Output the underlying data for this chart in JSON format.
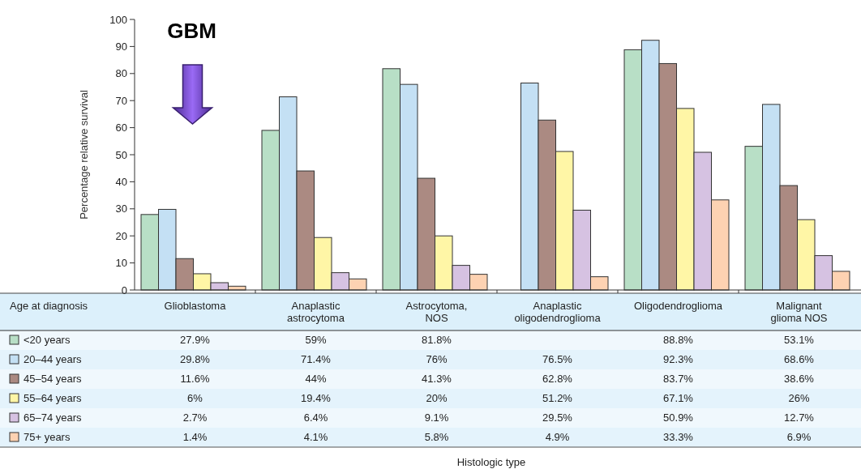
{
  "chart_data": {
    "type": "bar",
    "ylabel": "Percentage relative survival",
    "legend_title": "Age at diagnosis",
    "legend": "bottom",
    "categories": [
      "Glioblastoma",
      "Anaplastic astrocytoma",
      "Astrocytoma, NOS",
      "Anaplastic oligodendroglioma",
      "Oligodendroglioma",
      "Malignant glioma NOS"
    ],
    "ylim": [
      0,
      100
    ],
    "yticks": [
      0,
      10,
      20,
      30,
      40,
      50,
      60,
      70,
      80,
      90,
      100
    ],
    "annotations": [
      "GBM",
      "Histologic type"
    ],
    "series": [
      {
        "name": "<20 years",
        "color": "#b8dfc6",
        "values": [
          27.9,
          59,
          81.8,
          null,
          88.8,
          53.1
        ],
        "value_labels": [
          "27.9%",
          "59%",
          "81.8%",
          null,
          "88.8%",
          "53.1%"
        ]
      },
      {
        "name": "20–44 years",
        "color": "#c4e0f4",
        "values": [
          29.8,
          71.4,
          76,
          76.5,
          92.3,
          68.6
        ],
        "value_labels": [
          "29.8%",
          "71.4%",
          "76%",
          "76.5%",
          "92.3%",
          "68.6%"
        ]
      },
      {
        "name": "45–54 years",
        "color": "#ab8a82",
        "values": [
          11.6,
          44,
          41.3,
          62.8,
          83.7,
          38.6
        ],
        "value_labels": [
          "11.6%",
          "44%",
          "41.3%",
          "62.8%",
          "83.7%",
          "38.6%"
        ]
      },
      {
        "name": "55–64 years",
        "color": "#fff6a6",
        "values": [
          6,
          19.4,
          20,
          51.2,
          67.1,
          26
        ],
        "value_labels": [
          "6%",
          "19.4%",
          "20%",
          "51.2%",
          "67.1%",
          "26%"
        ]
      },
      {
        "name": "65–74 years",
        "color": "#d6c2e2",
        "values": [
          2.7,
          6.4,
          9.1,
          29.5,
          50.9,
          12.7
        ],
        "value_labels": [
          "2.7%",
          "6.4%",
          "9.1%",
          "29.5%",
          "50.9%",
          "12.7%"
        ]
      },
      {
        "name": "75+ years",
        "color": "#fdd2b2",
        "values": [
          1.4,
          4.1,
          5.8,
          4.9,
          33.3,
          6.9
        ],
        "value_labels": [
          "1.4%",
          "4.1%",
          "5.8%",
          "4.9%",
          "33.3%",
          "6.9%"
        ]
      }
    ]
  }
}
